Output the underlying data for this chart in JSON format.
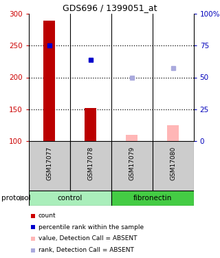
{
  "title": "GDS696 / 1399051_at",
  "samples": [
    "GSM17077",
    "GSM17078",
    "GSM17079",
    "GSM17080"
  ],
  "bar_values": [
    289,
    152,
    null,
    null
  ],
  "bar_values_absent": [
    null,
    null,
    110,
    125
  ],
  "dot_values": [
    250,
    228,
    null,
    null
  ],
  "dot_values_absent": [
    null,
    null,
    200,
    215
  ],
  "ylim": [
    100,
    300
  ],
  "y_ticks": [
    100,
    150,
    200,
    250,
    300
  ],
  "y2_ticks": [
    0,
    25,
    50,
    75,
    100
  ],
  "y2_labels": [
    "0",
    "25",
    "50",
    "75",
    "100%"
  ],
  "ylabel_color": "#cc0000",
  "y2label_color": "#0000bb",
  "bar_color_present": "#bb0000",
  "bar_color_absent": "#FFB6B6",
  "dot_color_present": "#0000cc",
  "dot_color_absent": "#AAAADD",
  "control_color": "#aaeebb",
  "fibronectin_color": "#44cc44",
  "sample_bg_color": "#cccccc",
  "legend_items": [
    {
      "label": "count",
      "color": "#cc0000"
    },
    {
      "label": "percentile rank within the sample",
      "color": "#0000cc"
    },
    {
      "label": "value, Detection Call = ABSENT",
      "color": "#FFB6B6"
    },
    {
      "label": "rank, Detection Call = ABSENT",
      "color": "#AAAADD"
    }
  ]
}
